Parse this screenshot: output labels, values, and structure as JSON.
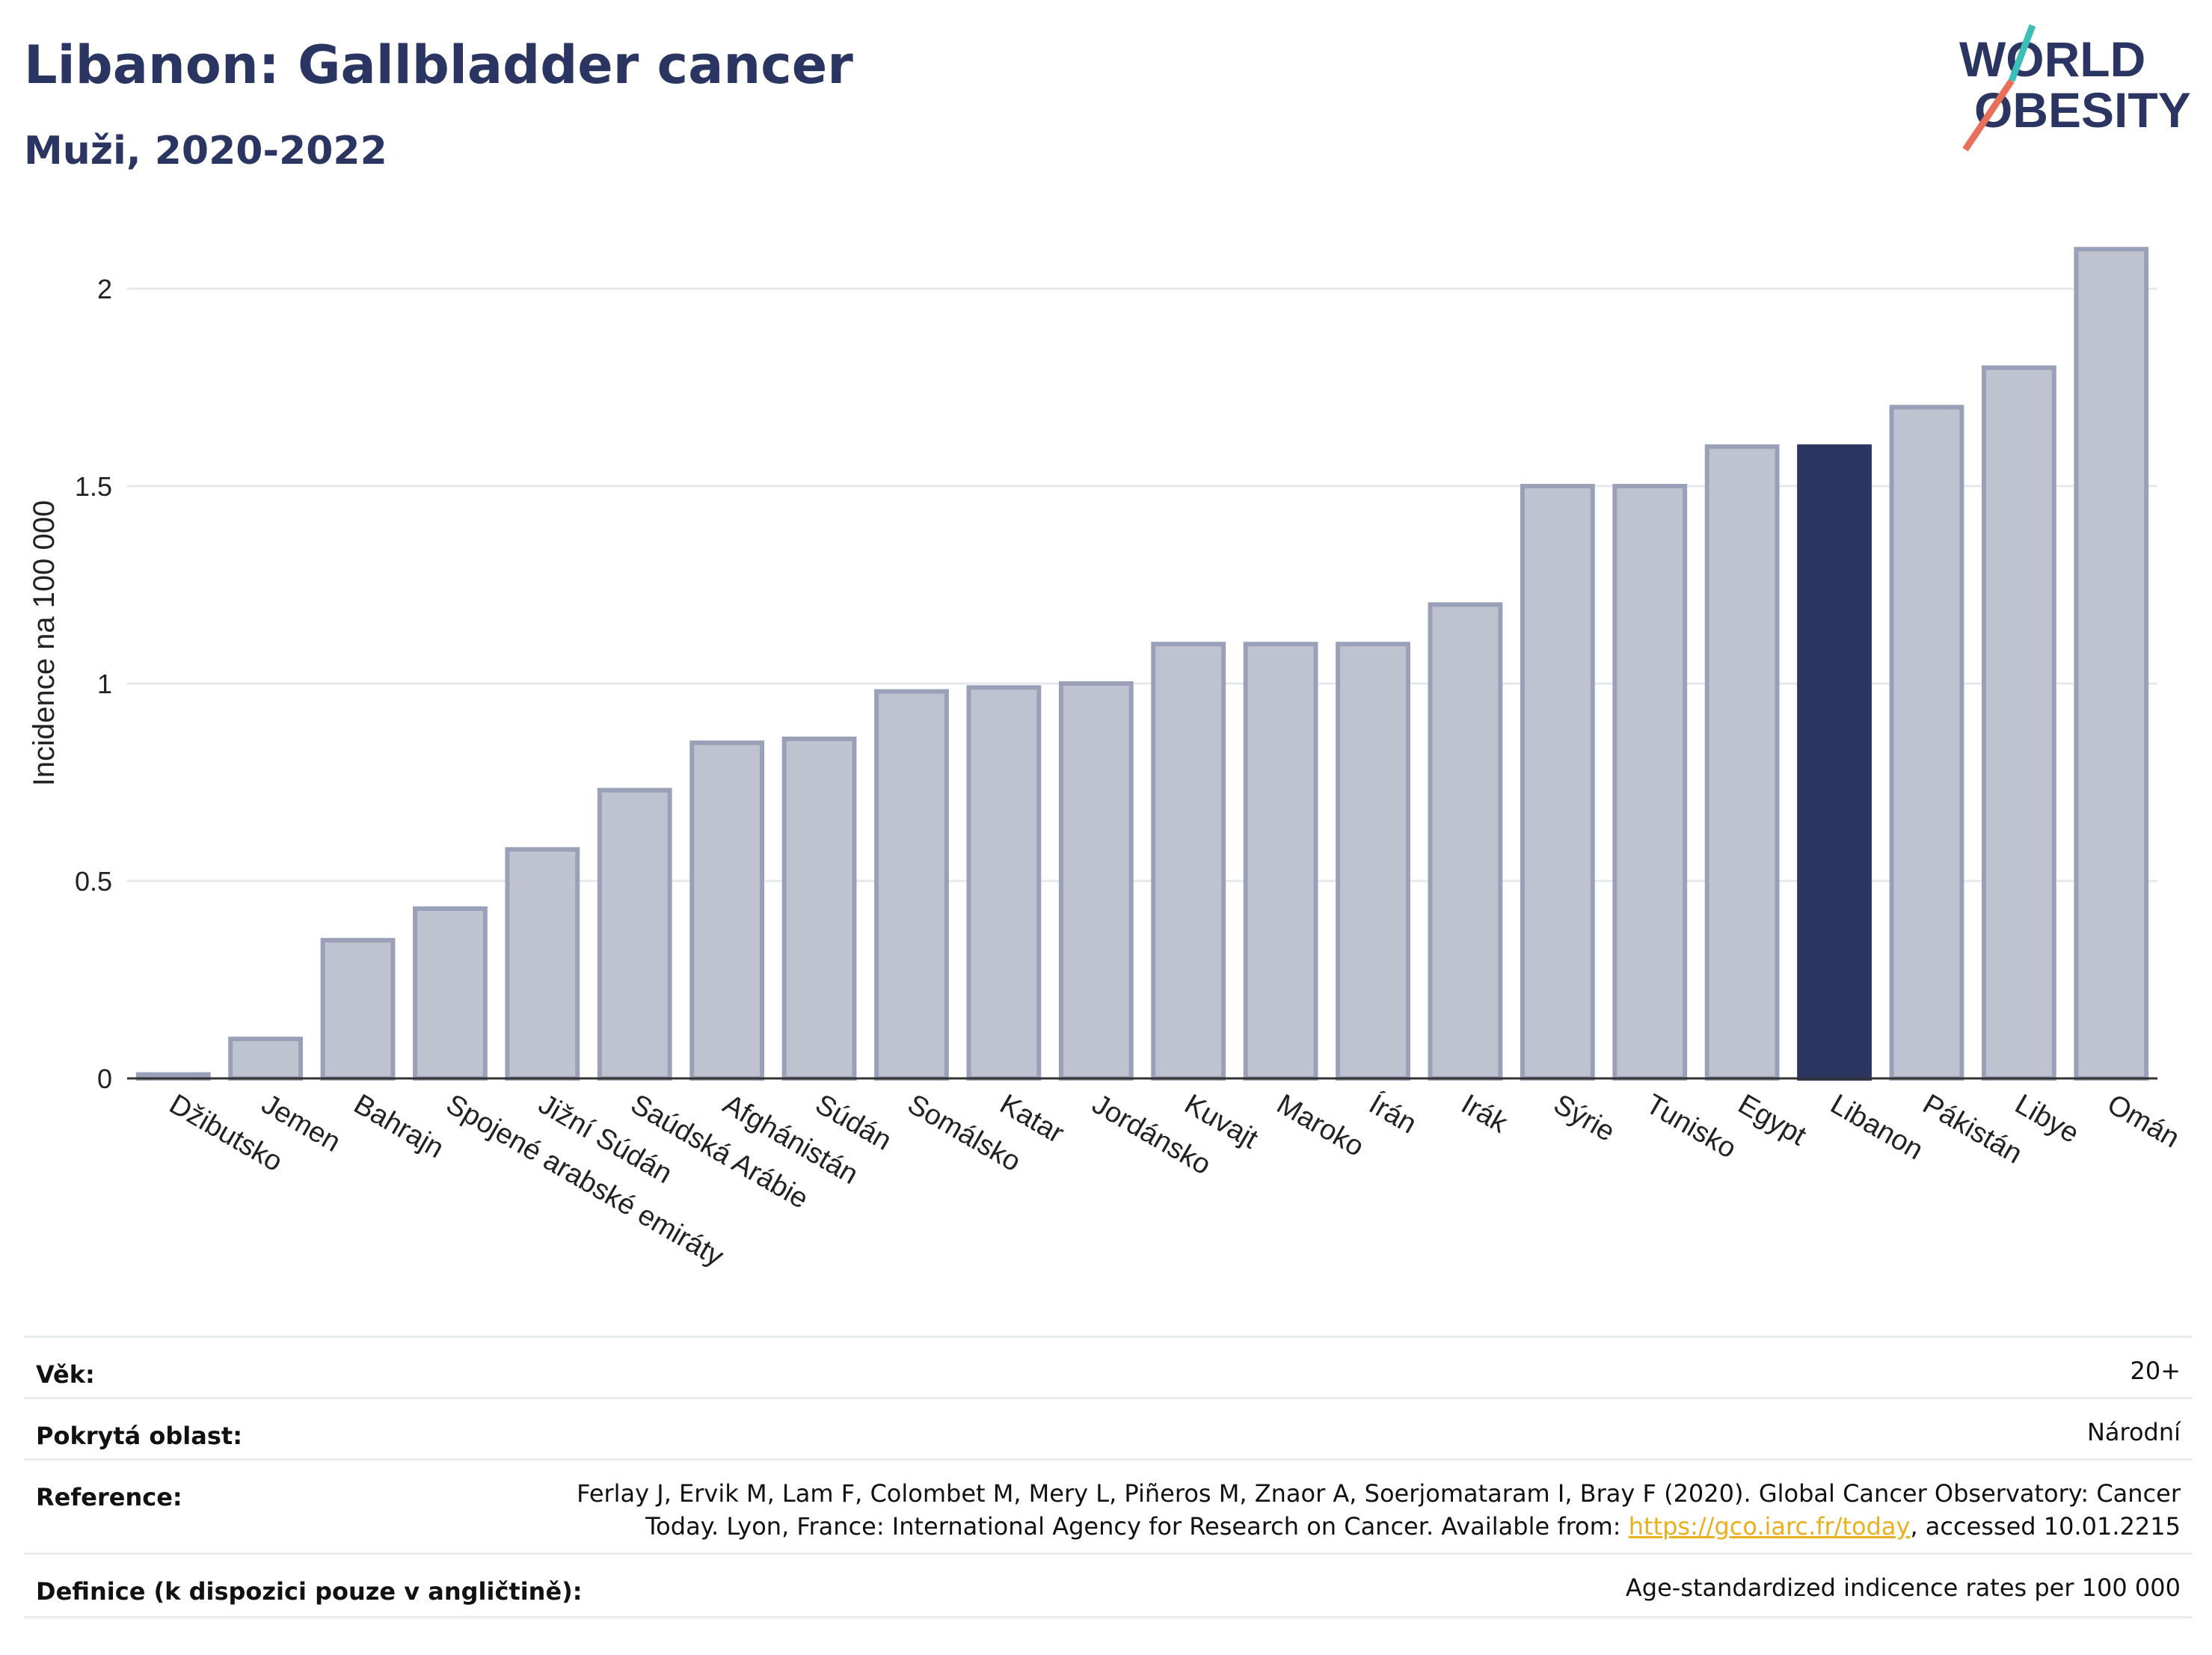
{
  "header": {
    "title": "Libanon: Gallbladder cancer",
    "subtitle": "Muži, 2020-2022"
  },
  "logo": {
    "line1": "WORLD",
    "line2": "OBESITY"
  },
  "colors": {
    "bar": "#bfc3d0",
    "bar_border": "#9aa0b8",
    "highlight": "#2a3561",
    "grid": "#e6e8ec"
  },
  "chart_data": {
    "type": "bar",
    "ylabel": "Incidence na 100 000",
    "ylim": [
      0,
      2.2
    ],
    "yticks": [
      0,
      0.5,
      1,
      1.5,
      2
    ],
    "ytick_labels": [
      "0",
      "0.5",
      "1",
      "1.5",
      "2"
    ],
    "highlight": "Libanon",
    "categories": [
      "Džibutsko",
      "Jemen",
      "Bahrajn",
      "Spojené arabské emiráty",
      "Jižní Súdán",
      "Saúdská Arábie",
      "Afghánistán",
      "Súdán",
      "Somálsko",
      "Katar",
      "Jordánsko",
      "Kuvajt",
      "Maroko",
      "Írán",
      "Irák",
      "Sýrie",
      "Tunisko",
      "Egypt",
      "Libanon",
      "Pákistán",
      "Libye",
      "Omán"
    ],
    "values": [
      0.01,
      0.1,
      0.35,
      0.43,
      0.58,
      0.73,
      0.85,
      0.86,
      0.98,
      0.99,
      1.0,
      1.1,
      1.1,
      1.1,
      1.2,
      1.5,
      1.5,
      1.6,
      1.6,
      1.7,
      1.8,
      2.1
    ]
  },
  "info": {
    "age_label": "Věk:",
    "age_value": "20+",
    "area_label": "Pokrytá oblast:",
    "area_value": "Národní",
    "reference_label": "Reference:",
    "reference_line1": "Ferlay J, Ervik M, Lam F, Colombet M, Mery L, Piñeros M, Znaor A, Soerjomataram I, Bray F (2020). Global Cancer Observatory: Cancer",
    "reference_line2_pre": "Today. Lyon, France: International Agency for Research on Cancer. Available from: ",
    "reference_link": "https://gco.iarc.fr/today",
    "reference_line2_post": ", accessed 10.01.2215",
    "definition_label": "Definice (k dispozici pouze v angličtině):",
    "definition_value": "Age-standardized indicence rates per 100 000"
  }
}
